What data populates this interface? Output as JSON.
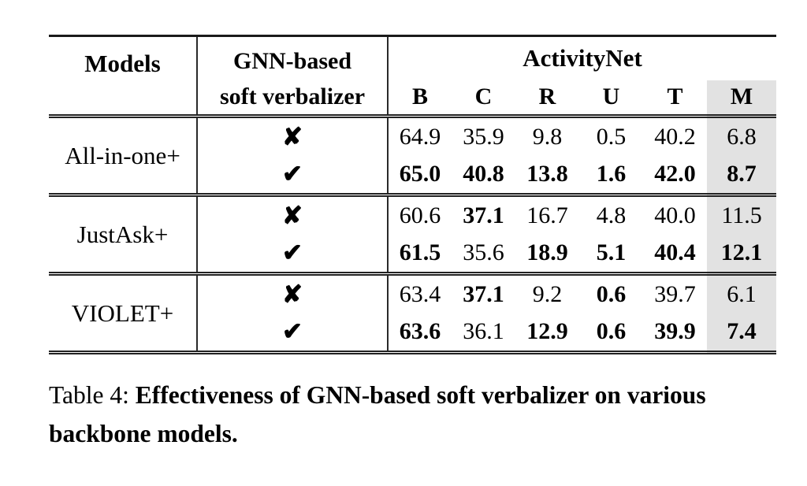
{
  "table": {
    "header": {
      "models_label": "Models",
      "verbalizer_label_line1": "GNN-based",
      "verbalizer_label_line2": "soft verbalizer",
      "span_label": "ActivityNet",
      "metric_labels": [
        "B",
        "C",
        "R",
        "U",
        "T",
        "M"
      ],
      "highlighted_metric": "M"
    },
    "symbols": {
      "without": "✘",
      "with": "✔"
    },
    "groups": [
      {
        "model": "All-in-one+",
        "rows": [
          {
            "verbalizer": "without",
            "values": [
              "64.9",
              "35.9",
              "9.8",
              "0.5",
              "40.2",
              "6.8"
            ],
            "bold": [
              false,
              false,
              false,
              false,
              false,
              false
            ]
          },
          {
            "verbalizer": "with",
            "values": [
              "65.0",
              "40.8",
              "13.8",
              "1.6",
              "42.0",
              "8.7"
            ],
            "bold": [
              true,
              true,
              true,
              true,
              true,
              true
            ]
          }
        ]
      },
      {
        "model": "JustAsk+",
        "rows": [
          {
            "verbalizer": "without",
            "values": [
              "60.6",
              "37.1",
              "16.7",
              "4.8",
              "40.0",
              "11.5"
            ],
            "bold": [
              false,
              true,
              false,
              false,
              false,
              false
            ]
          },
          {
            "verbalizer": "with",
            "values": [
              "61.5",
              "35.6",
              "18.9",
              "5.1",
              "40.4",
              "12.1"
            ],
            "bold": [
              true,
              false,
              true,
              true,
              true,
              true
            ]
          }
        ]
      },
      {
        "model": "VIOLET+",
        "rows": [
          {
            "verbalizer": "without",
            "values": [
              "63.4",
              "37.1",
              "9.2",
              "0.6",
              "39.7",
              "6.1"
            ],
            "bold": [
              false,
              true,
              false,
              true,
              false,
              false
            ]
          },
          {
            "verbalizer": "with",
            "values": [
              "63.6",
              "36.1",
              "12.9",
              "0.6",
              "39.9",
              "7.4"
            ],
            "bold": [
              true,
              false,
              true,
              true,
              true,
              true
            ]
          }
        ]
      }
    ]
  },
  "caption": {
    "label": "Table 4:",
    "text": "Effectiveness of GNN-based soft verbalizer on various backbone models."
  },
  "colors": {
    "highlight_column": "#e2e2e2",
    "rule": "#1a1a1a",
    "text": "#000000"
  }
}
